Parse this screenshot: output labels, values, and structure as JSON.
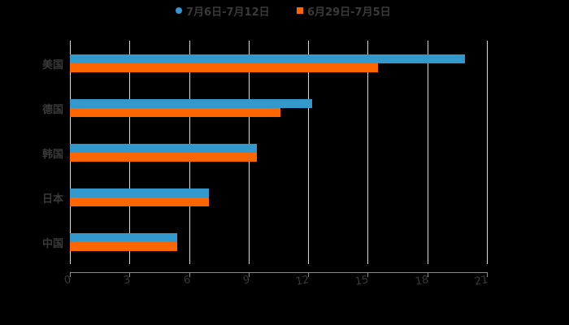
{
  "chart_data": {
    "type": "bar",
    "orientation": "horizontal",
    "title": "",
    "xlabel": "",
    "ylabel": "",
    "categories": [
      "美国",
      "德国",
      "韩国",
      "日本",
      "中国"
    ],
    "series": [
      {
        "name": "7月6日-7月12日",
        "color": "#3399cc",
        "marker": "circle",
        "values": [
          19.9,
          12.2,
          9.4,
          7.0,
          5.4
        ]
      },
      {
        "name": "6月29日-7月5日",
        "color": "#ff6600",
        "marker": "square",
        "values": [
          15.5,
          10.6,
          9.4,
          7.0,
          5.4
        ]
      }
    ],
    "xlim": [
      0,
      21
    ],
    "xticks": [
      "0",
      "3",
      "6",
      "9",
      "12",
      "15",
      "18",
      "21"
    ],
    "grid": true,
    "legend_position": "top"
  },
  "legend": {
    "items": [
      {
        "label": "7月6日-7月12日",
        "color": "#3399cc"
      },
      {
        "label": "6月29日-7月5日",
        "color": "#ff6600"
      }
    ]
  },
  "colors": {
    "background": "#000000",
    "gridline": "#d9d9d9",
    "axis": "#8c8c8c",
    "text": "#3a3a3a"
  }
}
